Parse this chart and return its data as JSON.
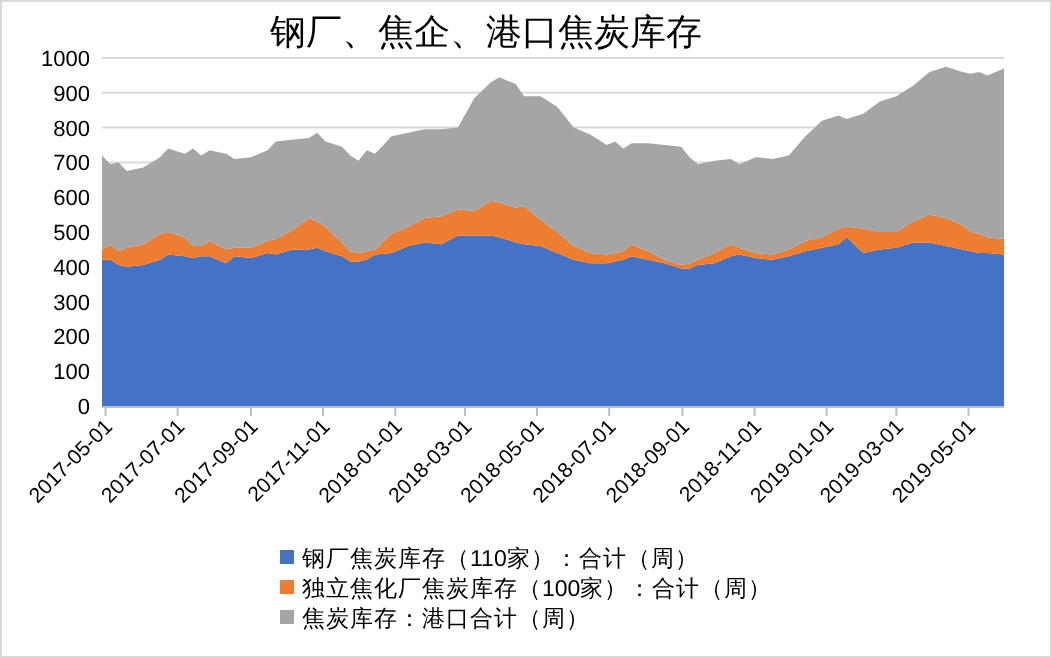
{
  "chart_data": {
    "type": "area",
    "title": "钢厂、焦企、港口焦炭库存",
    "stacked": true,
    "grid": "y",
    "legend": "bottom",
    "x": [
      "2017-04-28",
      "2017-05-05",
      "2017-05-12",
      "2017-05-19",
      "2017-06-02",
      "2017-06-16",
      "2017-06-23",
      "2017-07-07",
      "2017-07-14",
      "2017-07-21",
      "2017-07-28",
      "2017-08-11",
      "2017-08-18",
      "2017-09-01",
      "2017-09-15",
      "2017-09-22",
      "2017-10-06",
      "2017-10-20",
      "2017-10-27",
      "2017-11-03",
      "2017-11-17",
      "2017-11-24",
      "2017-12-01",
      "2017-12-08",
      "2017-12-15",
      "2017-12-29",
      "2018-01-12",
      "2018-01-26",
      "2018-02-09",
      "2018-02-23",
      "2018-03-09",
      "2018-03-23",
      "2018-03-30",
      "2018-04-13",
      "2018-04-20",
      "2018-05-04",
      "2018-05-18",
      "2018-06-01",
      "2018-06-15",
      "2018-06-29",
      "2018-07-06",
      "2018-07-13",
      "2018-07-20",
      "2018-08-03",
      "2018-08-17",
      "2018-08-31",
      "2018-09-07",
      "2018-09-14",
      "2018-09-28",
      "2018-10-12",
      "2018-10-19",
      "2018-11-02",
      "2018-11-16",
      "2018-11-30",
      "2018-12-14",
      "2018-12-28",
      "2019-01-11",
      "2019-01-18",
      "2019-02-01",
      "2019-02-15",
      "2019-03-01",
      "2019-03-15",
      "2019-03-29",
      "2019-04-12",
      "2019-04-26",
      "2019-05-03",
      "2019-05-10",
      "2019-05-17",
      "2019-05-31"
    ],
    "series": [
      {
        "name": "钢厂焦炭库存（110家）：合计（周）",
        "color": "#4472c4",
        "values": [
          420,
          420,
          405,
          400,
          405,
          420,
          435,
          430,
          425,
          430,
          430,
          410,
          430,
          425,
          440,
          435,
          450,
          450,
          455,
          445,
          430,
          415,
          415,
          420,
          435,
          440,
          460,
          470,
          465,
          490,
          490,
          490,
          485,
          470,
          465,
          460,
          440,
          420,
          410,
          410,
          415,
          420,
          430,
          420,
          410,
          395,
          395,
          405,
          410,
          430,
          435,
          425,
          420,
          430,
          445,
          455,
          465,
          485,
          440,
          450,
          455,
          470,
          470,
          460,
          450,
          445,
          440,
          440,
          435
        ]
      },
      {
        "name": "独立焦化厂焦炭库存（100家）：合计（周）",
        "color": "#ed7d31",
        "values": [
          30,
          45,
          40,
          55,
          60,
          75,
          65,
          55,
          35,
          30,
          45,
          40,
          25,
          30,
          35,
          45,
          55,
          90,
          75,
          70,
          40,
          30,
          25,
          25,
          15,
          55,
          55,
          70,
          80,
          75,
          70,
          100,
          100,
          100,
          110,
          75,
          60,
          40,
          30,
          25,
          25,
          25,
          35,
          25,
          10,
          10,
          15,
          15,
          30,
          35,
          20,
          15,
          15,
          20,
          30,
          30,
          45,
          30,
          70,
          50,
          45,
          60,
          80,
          80,
          70,
          55,
          55,
          45,
          45
        ]
      },
      {
        "name": "焦炭库存：港口合计（周）",
        "color": "#a5a5a5",
        "values": [
          270,
          230,
          255,
          220,
          220,
          220,
          240,
          240,
          280,
          260,
          260,
          275,
          255,
          260,
          260,
          280,
          260,
          230,
          255,
          245,
          275,
          275,
          265,
          290,
          275,
          280,
          270,
          255,
          250,
          235,
          325,
          340,
          360,
          355,
          315,
          355,
          360,
          340,
          340,
          315,
          320,
          295,
          290,
          310,
          330,
          340,
          305,
          275,
          265,
          245,
          240,
          275,
          275,
          270,
          300,
          335,
          325,
          310,
          330,
          375,
          390,
          390,
          410,
          435,
          440,
          455,
          465,
          465,
          490
        ]
      }
    ],
    "ylim": [
      0,
      1000
    ],
    "yticks": [
      0,
      100,
      200,
      300,
      400,
      500,
      600,
      700,
      800,
      900,
      1000
    ],
    "xlim": [
      "2017-04-28",
      "2019-05-31"
    ],
    "xticks": [
      "2017-05-01",
      "2017-07-01",
      "2017-09-01",
      "2017-11-01",
      "2018-01-01",
      "2018-03-01",
      "2018-05-01",
      "2018-07-01",
      "2018-09-01",
      "2018-11-01",
      "2019-01-01",
      "2019-03-01",
      "2019-05-01"
    ]
  }
}
